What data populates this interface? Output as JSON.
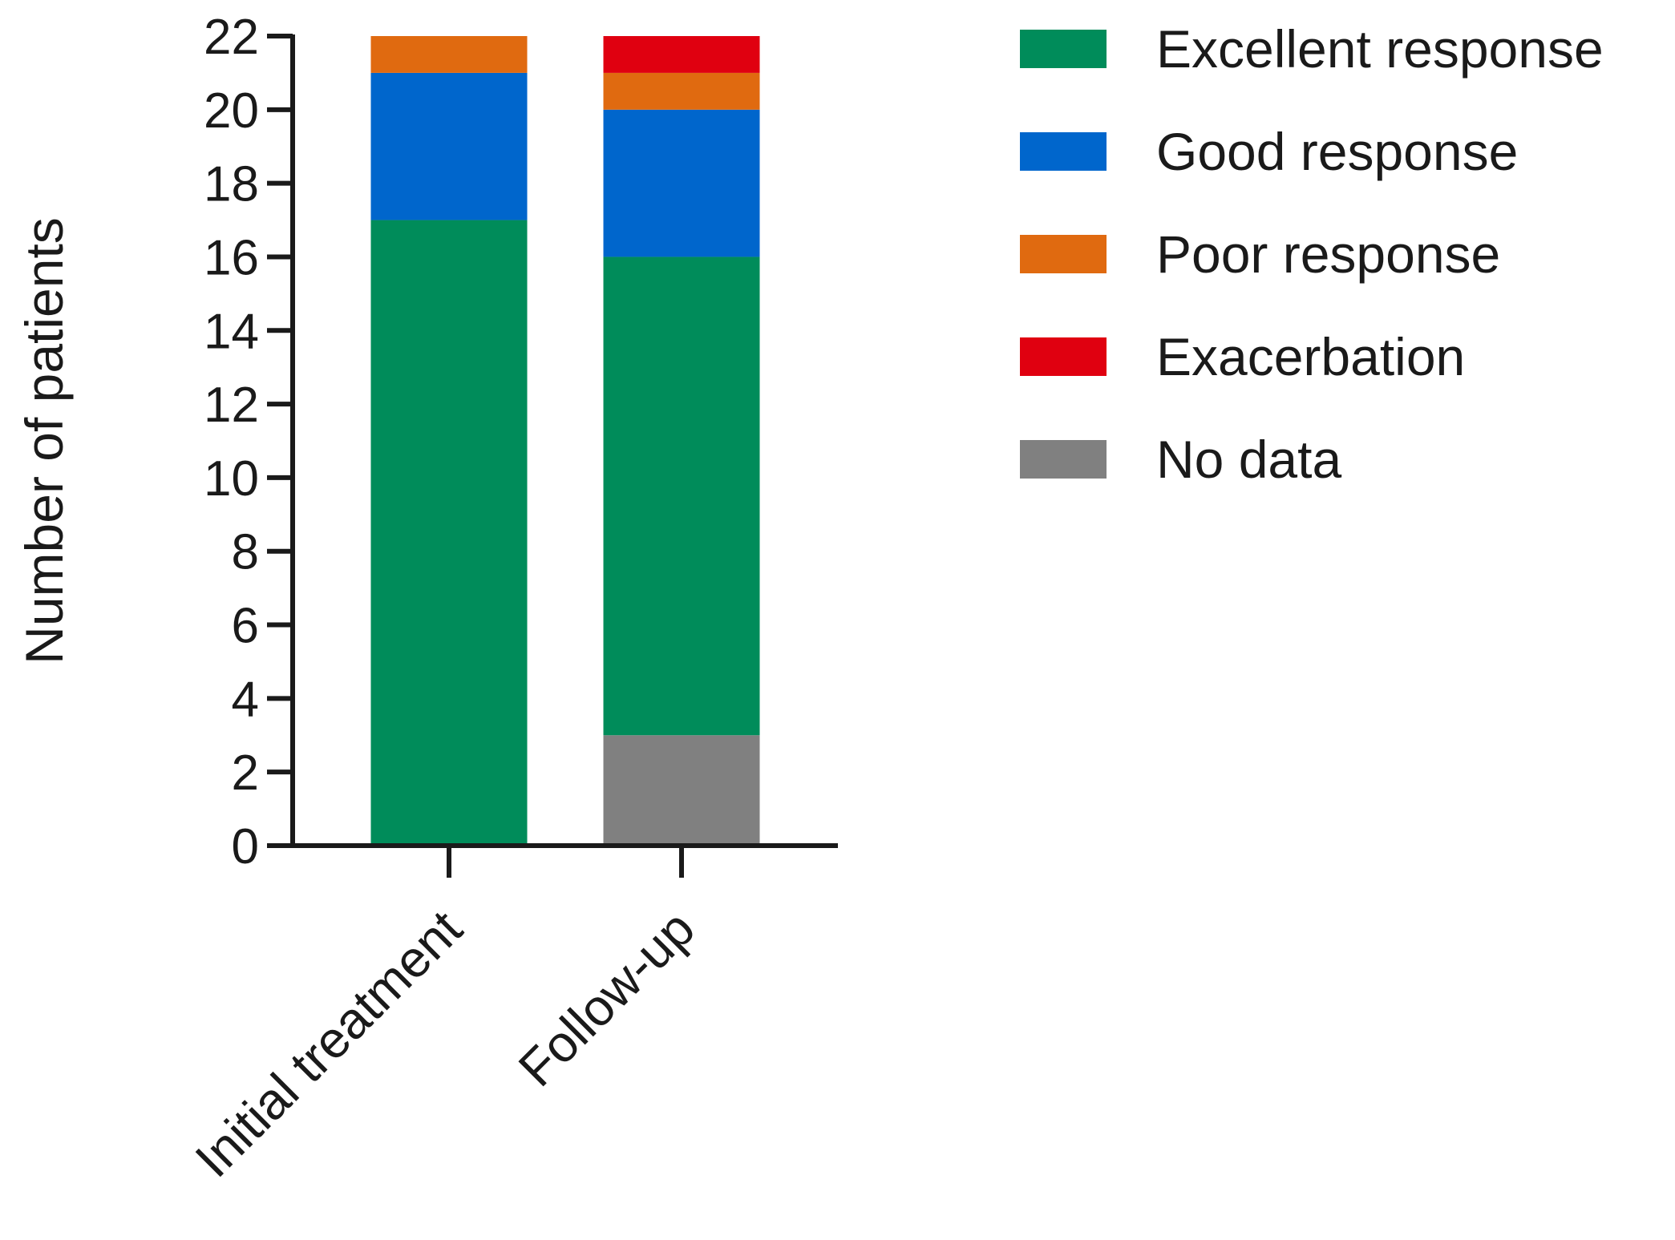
{
  "chart_data": {
    "type": "bar",
    "stacked": true,
    "categories": [
      "Initial treatment",
      "Follow-up"
    ],
    "series": [
      {
        "name": "No data",
        "values": [
          0,
          3
        ],
        "color": "#808080"
      },
      {
        "name": "Excellent response",
        "values": [
          17,
          13
        ],
        "color": "#008c5a"
      },
      {
        "name": "Good response",
        "values": [
          4,
          4
        ],
        "color": "#0066cc"
      },
      {
        "name": "Poor response",
        "values": [
          1,
          1
        ],
        "color": "#e06a10"
      },
      {
        "name": "Exacerbation",
        "values": [
          0,
          1
        ],
        "color": "#e00010"
      }
    ],
    "legend_order": [
      "Excellent response",
      "Good response",
      "Poor response",
      "Exacerbation",
      "No data"
    ],
    "title": "",
    "xlabel": "",
    "ylabel": "Number of patients",
    "ylim": [
      0,
      22
    ],
    "yticks": [
      0,
      2,
      4,
      6,
      8,
      10,
      12,
      14,
      16,
      18,
      20,
      22
    ],
    "grid": false,
    "legend_position": "top-right"
  }
}
